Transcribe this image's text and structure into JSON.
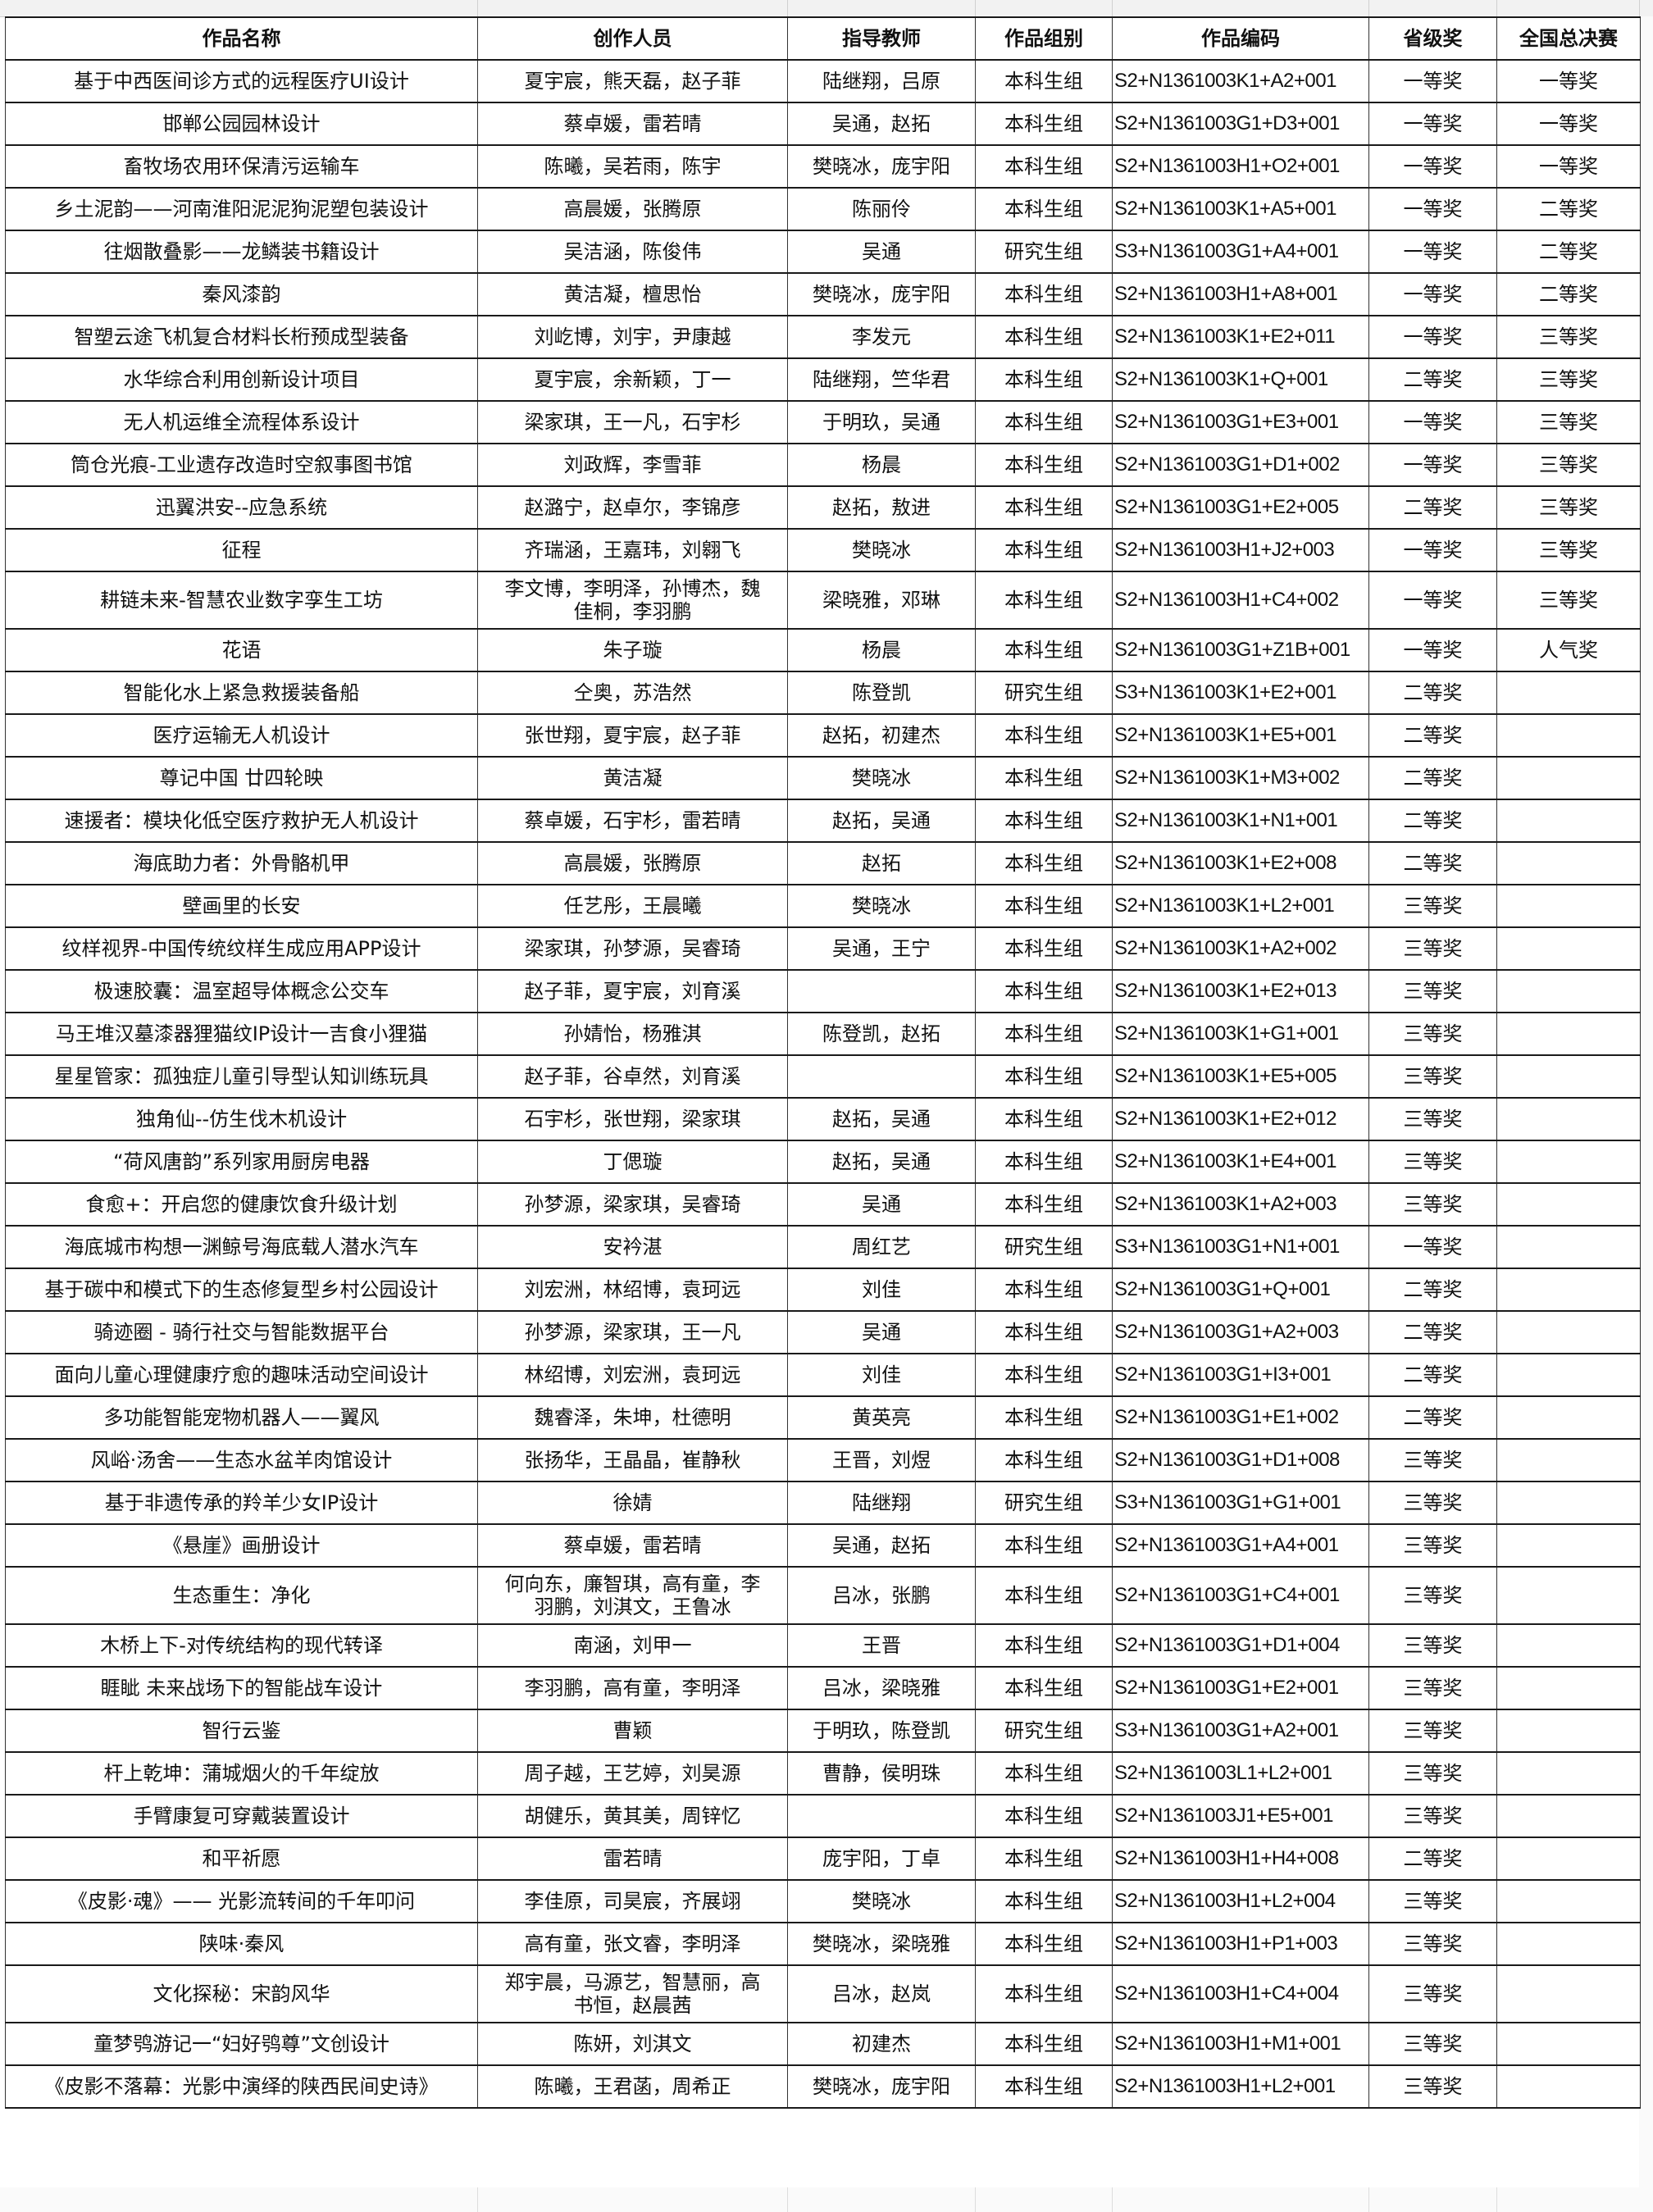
{
  "headers": [
    "作品名称",
    "创作人员",
    "指导教师",
    "作品组别",
    "作品编码",
    "省级奖",
    "全国总决赛"
  ],
  "rows": [
    [
      "基于中西医间诊方式的远程医疗UI设计",
      "夏宇宸，熊天磊，赵子菲",
      "陆继翔，吕原",
      "本科生组",
      "S2+N1361003K1+A2+001",
      "一等奖",
      "一等奖"
    ],
    [
      "邯郸公园园林设计",
      "蔡卓媛，雷若晴",
      "吴通，赵拓",
      "本科生组",
      "S2+N1361003G1+D3+001",
      "一等奖",
      "一等奖"
    ],
    [
      "畜牧场农用环保清污运输车",
      "陈曦，吴若雨，陈宇",
      "樊晓冰，庞宇阳",
      "本科生组",
      "S2+N1361003H1+O2+001",
      "一等奖",
      "一等奖"
    ],
    [
      "乡土泥韵——河南淮阳泥泥狗泥塑包装设计",
      "高晨媛，张腾原",
      "陈丽伶",
      "本科生组",
      "S2+N1361003K1+A5+001",
      "一等奖",
      "二等奖"
    ],
    [
      "往烟散叠影——龙鳞装书籍设计",
      "吴洁涵，陈俊伟",
      "吴通",
      "研究生组",
      "S3+N1361003G1+A4+001",
      "一等奖",
      "二等奖"
    ],
    [
      "秦风漆韵",
      "黄洁凝，檀思怡",
      "樊晓冰，庞宇阳",
      "本科生组",
      "S2+N1361003H1+A8+001",
      "一等奖",
      "二等奖"
    ],
    [
      "智塑云途飞机复合材料长桁预成型装备",
      "刘屹博，刘宇，尹康越",
      "李发元",
      "本科生组",
      "S2+N1361003K1+E2+011",
      "一等奖",
      "三等奖"
    ],
    [
      "水华综合利用创新设计项目",
      "夏宇宸，余新颖，丁一",
      "陆继翔，竺华君",
      "本科生组",
      "S2+N1361003K1+Q+001",
      "二等奖",
      "三等奖"
    ],
    [
      "无人机运维全流程体系设计",
      "梁家琪，王一凡，石宇杉",
      "于明玖，吴通",
      "本科生组",
      "S2+N1361003G1+E3+001",
      "一等奖",
      "三等奖"
    ],
    [
      "筒仓光痕-工业遗存改造时空叙事图书馆",
      "刘政辉，李雪菲",
      "杨晨",
      "本科生组",
      "S2+N1361003G1+D1+002",
      "一等奖",
      "三等奖"
    ],
    [
      "迅翼洪安--应急系统",
      "赵潞宁，赵卓尔，李锦彦",
      "赵拓，敖进",
      "本科生组",
      "S2+N1361003G1+E2+005",
      "二等奖",
      "三等奖"
    ],
    [
      "征程",
      "齐瑞涵，王嘉玮，刘翱飞",
      "樊晓冰",
      "本科生组",
      "S2+N1361003H1+J2+003",
      "一等奖",
      "三等奖"
    ],
    [
      "耕链未来-智慧农业数字孪生工坊",
      "李文博，李明泽，孙博杰，魏佳桐，李羽鹏",
      "梁晓雅，邓琳",
      "本科生组",
      "S2+N1361003H1+C4+002",
      "一等奖",
      "三等奖"
    ],
    [
      "花语",
      "朱子璇",
      "杨晨",
      "本科生组",
      "S2+N1361003G1+Z1B+001",
      "一等奖",
      "人气奖"
    ],
    [
      "智能化水上紧急救援装备船",
      "仝奥，苏浩然",
      "陈登凯",
      "研究生组",
      "S3+N1361003K1+E2+001",
      "二等奖",
      ""
    ],
    [
      "医疗运输无人机设计",
      "张世翔，夏宇宸，赵子菲",
      "赵拓，初建杰",
      "本科生组",
      "S2+N1361003K1+E5+001",
      "二等奖",
      ""
    ],
    [
      "尊记中国 廿四轮映",
      "黄洁凝",
      "樊晓冰",
      "本科生组",
      "S2+N1361003K1+M3+002",
      "二等奖",
      ""
    ],
    [
      "速援者：模块化低空医疗救护无人机设计",
      "蔡卓媛，石宇杉，雷若晴",
      "赵拓，吴通",
      "本科生组",
      "S2+N1361003K1+N1+001",
      "二等奖",
      ""
    ],
    [
      "海底助力者：外骨骼机甲",
      "高晨媛，张腾原",
      "赵拓",
      "本科生组",
      "S2+N1361003K1+E2+008",
      "二等奖",
      ""
    ],
    [
      "壁画里的长安",
      "任艺彤，王晨曦",
      "樊晓冰",
      "本科生组",
      "S2+N1361003K1+L2+001",
      "三等奖",
      ""
    ],
    [
      "纹样视界-中国传统纹样生成应用APP设计",
      "梁家琪，孙梦源，吴睿琦",
      "吴通，王宁",
      "本科生组",
      "S2+N1361003K1+A2+002",
      "三等奖",
      ""
    ],
    [
      "极速胶囊：温室超导体概念公交车",
      "赵子菲，夏宇宸，刘育溪",
      "",
      "本科生组",
      "S2+N1361003K1+E2+013",
      "三等奖",
      ""
    ],
    [
      "马王堆汉墓漆器狸猫纹IP设计一吉食小狸猫",
      "孙婧怡，杨雅淇",
      "陈登凯，赵拓",
      "本科生组",
      "S2+N1361003K1+G1+001",
      "三等奖",
      ""
    ],
    [
      "星星管家：孤独症儿童引导型认知训练玩具",
      "赵子菲，谷卓然，刘育溪",
      "",
      "本科生组",
      "S2+N1361003K1+E5+005",
      "三等奖",
      ""
    ],
    [
      "独角仙--仿生伐木机设计",
      "石宇杉，张世翔，梁家琪",
      "赵拓，吴通",
      "本科生组",
      "S2+N1361003K1+E2+012",
      "三等奖",
      ""
    ],
    [
      "“荷风唐韵”系列家用厨房电器",
      "丁偲璇",
      "赵拓，吴通",
      "本科生组",
      "S2+N1361003K1+E4+001",
      "三等奖",
      ""
    ],
    [
      "食愈+：开启您的健康饮食升级计划",
      "孙梦源，梁家琪，吴睿琦",
      "吴通",
      "本科生组",
      "S2+N1361003K1+A2+003",
      "三等奖",
      ""
    ],
    [
      "海底城市构想一渊鲸号海底载人潜水汽车",
      "安衿湛",
      "周红艺",
      "研究生组",
      "S3+N1361003G1+N1+001",
      "一等奖",
      ""
    ],
    [
      "基于碳中和模式下的生态修复型乡村公园设计",
      "刘宏洲，林绍博，袁珂远",
      "刘佳",
      "本科生组",
      "S2+N1361003G1+Q+001",
      "二等奖",
      ""
    ],
    [
      "骑迹圈 - 骑行社交与智能数据平台",
      "孙梦源，梁家琪，王一凡",
      "吴通",
      "本科生组",
      "S2+N1361003G1+A2+003",
      "二等奖",
      ""
    ],
    [
      "面向儿童心理健康疗愈的趣味活动空间设计",
      "林绍博，刘宏洲，袁珂远",
      "刘佳",
      "本科生组",
      "S2+N1361003G1+I3+001",
      "二等奖",
      ""
    ],
    [
      "多功能智能宠物机器人——翼风",
      "魏睿泽，朱坤，杜德明",
      "黄英亮",
      "本科生组",
      "S2+N1361003G1+E1+002",
      "二等奖",
      ""
    ],
    [
      "风峪·汤舍——生态水盆羊肉馆设计",
      "张扬华，王晶晶，崔静秋",
      "王晋，刘煜",
      "本科生组",
      "S2+N1361003G1+D1+008",
      "三等奖",
      ""
    ],
    [
      "基于非遗传承的羚羊少女IP设计",
      "徐婧",
      "陆继翔",
      "研究生组",
      "S3+N1361003G1+G1+001",
      "三等奖",
      ""
    ],
    [
      "《悬崖》画册设计",
      "蔡卓媛，雷若晴",
      "吴通，赵拓",
      "本科生组",
      "S2+N1361003G1+A4+001",
      "三等奖",
      ""
    ],
    [
      "生态重生：净化",
      "何向东，廉智琪，高有童，李羽鹏，刘淇文，王鲁冰",
      "吕冰，张鹏",
      "本科生组",
      "S2+N1361003G1+C4+001",
      "三等奖",
      ""
    ],
    [
      "木桥上下-对传统结构的现代转译",
      "南涵，刘甲一",
      "王晋",
      "本科生组",
      "S2+N1361003G1+D1+004",
      "三等奖",
      ""
    ],
    [
      "睚眦 未来战场下的智能战车设计",
      "李羽鹏，高有童，李明泽",
      "吕冰，梁晓雅",
      "本科生组",
      "S2+N1361003G1+E2+001",
      "三等奖",
      ""
    ],
    [
      "智行云鉴",
      "曹颖",
      "于明玖，陈登凯",
      "研究生组",
      "S3+N1361003G1+A2+001",
      "三等奖",
      ""
    ],
    [
      "杆上乾坤：蒲城烟火的千年绽放",
      "周子越，王艺婷，刘昊源",
      "曹静，侯明珠",
      "本科生组",
      "S2+N1361003L1+L2+001",
      "三等奖",
      ""
    ],
    [
      "手臂康复可穿戴装置设计",
      "胡健乐，黄其美，周锌忆",
      "",
      "本科生组",
      "S2+N1361003J1+E5+001",
      "三等奖",
      ""
    ],
    [
      "和平祈愿",
      "雷若晴",
      "庞宇阳，丁卓",
      "本科生组",
      "S2+N1361003H1+H4+008",
      "二等奖",
      ""
    ],
    [
      "《皮影·魂》—— 光影流转间的千年叩问",
      "李佳原，司昊宸，齐展翊",
      "樊晓冰",
      "本科生组",
      "S2+N1361003H1+L2+004",
      "三等奖",
      ""
    ],
    [
      "陕味·秦风",
      "高有童，张文睿，李明泽",
      "樊晓冰，梁晓雅",
      "本科生组",
      "S2+N1361003H1+P1+003",
      "三等奖",
      ""
    ],
    [
      "文化探秘：宋韵风华",
      "郑宇晨，马源艺，智慧丽，高书恒，赵晨茜",
      "吕冰，赵岚",
      "本科生组",
      "S2+N1361003H1+C4+004",
      "三等奖",
      ""
    ],
    [
      "童梦鸮游记一“妇好鸮尊”文创设计",
      "陈妍，刘淇文",
      "初建杰",
      "本科生组",
      "S2+N1361003H1+M1+001",
      "三等奖",
      ""
    ],
    [
      "《皮影不落幕：光影中演绎的陕西民间史诗》",
      "陈曦，王君菡，周希正",
      "樊晓冰，庞宇阳",
      "本科生组",
      "S2+N1361003H1+L2+001",
      "三等奖",
      ""
    ]
  ]
}
